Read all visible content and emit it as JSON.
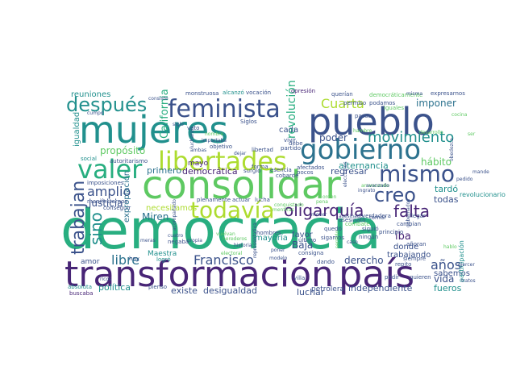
{
  "wordcloud": {
    "palette": [
      "#440154",
      "#482576",
      "#3b528b",
      "#2c728e",
      "#21908d",
      "#28ae80",
      "#5ec962",
      "#addc30",
      "#fde725"
    ],
    "words": [
      {
        "text": "democracia",
        "color": "#28ae80"
      },
      {
        "text": "transformación",
        "color": "#482576"
      },
      {
        "text": "mujeres",
        "color": "#21908d"
      },
      {
        "text": "pueblo",
        "color": "#3b528b"
      },
      {
        "text": "consolidar",
        "color": "#5ec962"
      },
      {
        "text": "país",
        "color": "#482576"
      },
      {
        "text": "gobierno",
        "color": "#2c728e"
      },
      {
        "text": "libertades",
        "color": "#addc30"
      },
      {
        "text": "feminista",
        "color": "#3b528b"
      },
      {
        "text": "valer",
        "color": "#28ae80"
      },
      {
        "text": "todavía",
        "color": "#addc30"
      },
      {
        "text": "mismo",
        "color": "#3b528b"
      },
      {
        "text": "después",
        "color": "#21908d"
      },
      {
        "text": "creo",
        "color": "#3b528b"
      },
      {
        "text": "movimiento",
        "color": "#21908d"
      },
      {
        "text": "oligarquía",
        "color": "#482576"
      },
      {
        "text": "falta",
        "color": "#482576"
      },
      {
        "text": "trabajan",
        "color": "#3b528b"
      },
      {
        "text": "sino",
        "color": "#21908d"
      },
      {
        "text": "Francisco",
        "color": "#3b528b"
      },
      {
        "text": "años",
        "color": "#3b528b"
      },
      {
        "text": "libre",
        "color": "#2c728e"
      },
      {
        "text": "amplio",
        "color": "#3b528b"
      },
      {
        "text": "Cuarta",
        "color": "#addc30"
      },
      {
        "text": "poder",
        "color": "#3b528b"
      },
      {
        "text": "Miren",
        "color": "#2c728e"
      },
      {
        "text": "justicia",
        "color": "#3b528b"
      },
      {
        "text": "propósito",
        "color": "#5ec962"
      },
      {
        "text": "reuniones",
        "color": "#21908d"
      },
      {
        "text": "primero",
        "color": "#2c728e"
      },
      {
        "text": "democrática",
        "color": "#482576"
      },
      {
        "text": "revolución",
        "color": "#28ae80"
      },
      {
        "text": "California",
        "color": "#28ae80"
      },
      {
        "text": "hábito",
        "color": "#5ec962"
      },
      {
        "text": "regresar",
        "color": "#3b528b"
      },
      {
        "text": "alternancia",
        "color": "#21908d"
      },
      {
        "text": "imponer",
        "color": "#2c728e"
      },
      {
        "text": "cada",
        "color": "#3b528b"
      },
      {
        "text": "vida",
        "color": "#3b528b"
      },
      {
        "text": "tardó",
        "color": "#21908d"
      },
      {
        "text": "todas",
        "color": "#3b528b"
      },
      {
        "text": "iba",
        "color": "#482576"
      },
      {
        "text": "donde",
        "color": "#3b528b"
      },
      {
        "text": "derecho",
        "color": "#3b528b"
      },
      {
        "text": "luchar",
        "color": "#3b528b"
      },
      {
        "text": "independiente",
        "color": "#3b528b"
      },
      {
        "text": "fueros",
        "color": "#21908d"
      },
      {
        "text": "existe",
        "color": "#3b528b"
      },
      {
        "text": "desigualdad",
        "color": "#3b528b"
      },
      {
        "text": "política",
        "color": "#21908d"
      },
      {
        "text": "igualdad",
        "color": "#21908d"
      },
      {
        "text": "necesitamos",
        "color": "#addc30"
      },
      {
        "text": "Baja",
        "color": "#3b528b"
      },
      {
        "text": "mayoría",
        "color": "#21908d"
      },
      {
        "text": "trabajando",
        "color": "#3b528b"
      },
      {
        "text": "sabemos",
        "color": "#3b528b"
      },
      {
        "text": "favor",
        "color": "#3b528b"
      },
      {
        "text": "Maestra",
        "color": "#21908d"
      },
      {
        "text": "conseguir",
        "color": "#3b528b"
      },
      {
        "text": "expropiación",
        "color": "#2c728e"
      },
      {
        "text": "manifestarnos",
        "color": "#3b528b"
      },
      {
        "text": "imposiciones",
        "color": "#3b528b"
      },
      {
        "text": "autoritarismo",
        "color": "#3b528b"
      },
      {
        "text": "mayo",
        "color": "#482576"
      },
      {
        "text": "objetivo",
        "color": "#3b528b"
      },
      {
        "text": "libertad",
        "color": "#3b528b"
      },
      {
        "text": "vivir",
        "color": "#3b528b"
      },
      {
        "text": "partido",
        "color": "#3b528b"
      },
      {
        "text": "debe",
        "color": "#3b528b"
      },
      {
        "text": "voto",
        "color": "#3b528b"
      },
      {
        "text": "Siglos",
        "color": "#3b528b"
      },
      {
        "text": "surgió",
        "color": "#3b528b"
      },
      {
        "text": "monstruosa",
        "color": "#3b528b"
      },
      {
        "text": "alcanzó",
        "color": "#21908d"
      },
      {
        "text": "vocación",
        "color": "#3b528b"
      },
      {
        "text": "opresión",
        "color": "#482576"
      },
      {
        "text": "querían",
        "color": "#3b528b"
      },
      {
        "text": "podamos",
        "color": "#3b528b"
      },
      {
        "text": "permiso",
        "color": "#3b528b"
      },
      {
        "text": "democráticamente",
        "color": "#5ec962"
      },
      {
        "text": "expresarnos",
        "color": "#3b528b"
      },
      {
        "text": "participación",
        "color": "#21908d"
      },
      {
        "text": "revolucionario",
        "color": "#21908d"
      },
      {
        "text": "pasos",
        "color": "#3b528b"
      },
      {
        "text": "forma",
        "color": "#3b528b"
      },
      {
        "text": "asesinato",
        "color": "#3b528b"
      },
      {
        "text": "verdadera",
        "color": "#3b528b"
      },
      {
        "text": "llegar",
        "color": "#3b528b"
      },
      {
        "text": "principio",
        "color": "#3b528b"
      },
      {
        "text": "siguió",
        "color": "#3b528b"
      },
      {
        "text": "ningún",
        "color": "#3b528b"
      },
      {
        "text": "añoran",
        "color": "#3b528b"
      },
      {
        "text": "hombres",
        "color": "#3b528b"
      },
      {
        "text": "quedó",
        "color": "#3b528b"
      },
      {
        "text": "consigna",
        "color": "#3b528b"
      },
      {
        "text": "petrolera",
        "color": "#3b528b"
      },
      {
        "text": "buscaba",
        "color": "#482576"
      },
      {
        "text": "absoluta",
        "color": "#21908d"
      },
      {
        "text": "amor",
        "color": "#3b528b"
      },
      {
        "text": "hoy",
        "color": "#3b528b"
      },
      {
        "text": "pienso",
        "color": "#3b528b"
      },
      {
        "text": "negaba",
        "color": "#3b528b"
      },
      {
        "text": "plenamente",
        "color": "#3b528b"
      },
      {
        "text": "actuar",
        "color": "#3b528b"
      },
      {
        "text": "lucha",
        "color": "#3b528b"
      },
      {
        "text": "sigamos",
        "color": "#3b528b"
      },
      {
        "text": "villa",
        "color": "#3b528b"
      },
      {
        "text": "último",
        "color": "#3b528b"
      },
      {
        "text": "siempre",
        "color": "#3b528b"
      },
      {
        "text": "dando",
        "color": "#3b528b"
      },
      {
        "text": "quieren",
        "color": "#3b528b"
      },
      {
        "text": "pedir",
        "color": "#3b528b"
      },
      {
        "text": "logró",
        "color": "#21908d"
      },
      {
        "text": "social",
        "color": "#21908d"
      },
      {
        "text": "cumpo",
        "color": "#3b528b"
      },
      {
        "text": "cobarde",
        "color": "#3b528b"
      },
      {
        "text": "esencia",
        "color": "#3b528b"
      },
      {
        "text": "afectados",
        "color": "#3b528b"
      },
      {
        "text": "pocos",
        "color": "#3b528b"
      },
      {
        "text": "combate",
        "color": "#5ec962"
      },
      {
        "text": "cambian",
        "color": "#3b528b"
      },
      {
        "text": "repito",
        "color": "#3b528b"
      },
      {
        "text": "tomar",
        "color": "#3b528b"
      },
      {
        "text": "iguales",
        "color": "#5ec962"
      },
      {
        "text": "consiste",
        "color": "#3b528b"
      },
      {
        "text": "misma",
        "color": "#3b528b"
      },
      {
        "text": "siglo",
        "color": "#3b528b"
      },
      {
        "text": "cocina",
        "color": "#5ec962"
      },
      {
        "text": "desarrollo",
        "color": "#5ec962"
      },
      {
        "text": "importaba",
        "color": "#3b528b"
      },
      {
        "text": "hambre",
        "color": "#5ec962"
      },
      {
        "text": "nombre",
        "color": "#5ec962"
      },
      {
        "text": "lucharon",
        "color": "#3b528b"
      },
      {
        "text": "ambas",
        "color": "#3b528b"
      },
      {
        "text": "dejar",
        "color": "#3b528b"
      },
      {
        "text": "acompañado",
        "color": "#3b528b"
      },
      {
        "text": "meras",
        "color": "#3b528b"
      },
      {
        "text": "cuatro",
        "color": "#3b528b"
      },
      {
        "text": "propia",
        "color": "#3b528b"
      },
      {
        "text": "historia",
        "color": "#3b528b"
      },
      {
        "text": "mande",
        "color": "#3b528b"
      },
      {
        "text": "mentiras",
        "color": "#5ec962"
      },
      {
        "text": "obedezca",
        "color": "#3b528b"
      },
      {
        "text": "tratos",
        "color": "#3b528b"
      },
      {
        "text": "asesinado",
        "color": "#3b528b"
      },
      {
        "text": "ingrato",
        "color": "#3b528b"
      },
      {
        "text": "arrancando",
        "color": "#5ec962"
      },
      {
        "text": "avanzado",
        "color": "#3b528b"
      },
      {
        "text": "ricos",
        "color": "#3b528b"
      },
      {
        "text": "herederos",
        "color": "#5ec962"
      },
      {
        "text": "representativa",
        "color": "#3b528b"
      },
      {
        "text": "electoral",
        "color": "#5ec962"
      },
      {
        "text": "modelo",
        "color": "#3b528b"
      },
      {
        "text": "vuelvan",
        "color": "#5ec962"
      },
      {
        "text": "poner",
        "color": "#3b528b"
      },
      {
        "text": "conquistado",
        "color": "#5ec962"
      },
      {
        "text": "mover",
        "color": "#3b528b"
      },
      {
        "text": "pena",
        "color": "#5ec962"
      },
      {
        "text": "elecciones",
        "color": "#3b528b"
      },
      {
        "text": "gobernados",
        "color": "#3b528b"
      },
      {
        "text": "orden",
        "color": "#5ec962"
      },
      {
        "text": "ser",
        "color": "#5ec962"
      },
      {
        "text": "caso",
        "color": "#3b528b"
      },
      {
        "text": "ejercer",
        "color": "#3b528b"
      },
      {
        "text": "sentido",
        "color": "#5ec962"
      },
      {
        "text": "pedido",
        "color": "#3b528b"
      },
      {
        "text": "hablo",
        "color": "#5ec962"
      }
    ]
  }
}
